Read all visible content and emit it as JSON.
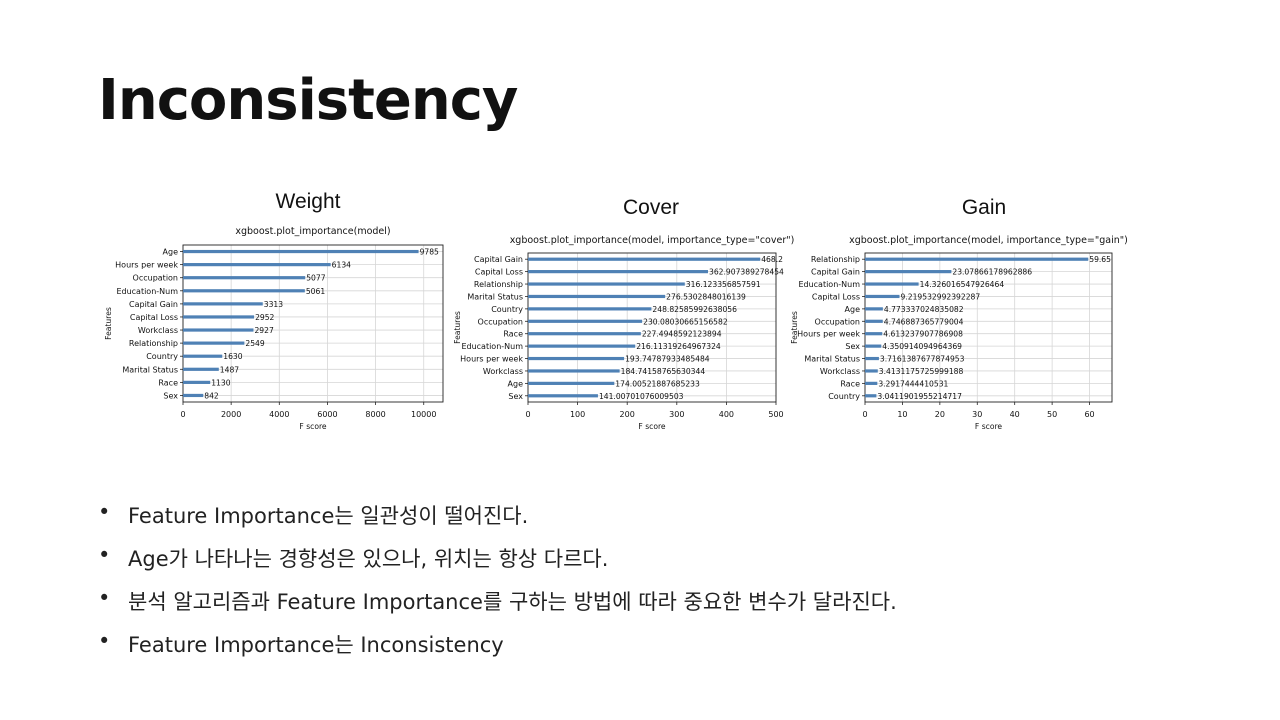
{
  "slide": {
    "title": "Inconsistency"
  },
  "panels": [
    {
      "heading": "Weight"
    },
    {
      "heading": "Cover"
    },
    {
      "heading": "Gain"
    }
  ],
  "chart_data": [
    {
      "type": "bar",
      "orientation": "horizontal",
      "title": "xgboost.plot_importance(model)",
      "xlabel": "F score",
      "ylabel": "Features",
      "xlim": [
        0,
        10800
      ],
      "xticks": [
        0,
        2000,
        4000,
        6000,
        8000,
        10000
      ],
      "grid": true,
      "bar_color": "#4f81b5",
      "categories": [
        "Age",
        "Hours per week",
        "Occupation",
        "Education-Num",
        "Capital Gain",
        "Capital Loss",
        "Workclass",
        "Relationship",
        "Country",
        "Marital Status",
        "Race",
        "Sex"
      ],
      "values": [
        9785,
        6134,
        5077,
        5061,
        3313,
        2952,
        2927,
        2549,
        1630,
        1487,
        1130,
        842
      ],
      "value_labels": [
        "9785",
        "6134",
        "5077",
        "5061",
        "3313",
        "2952",
        "2927",
        "2549",
        "1630",
        "1487",
        "1130",
        "842"
      ]
    },
    {
      "type": "bar",
      "orientation": "horizontal",
      "title": "xgboost.plot_importance(model, importance_type=\"cover\")",
      "xlabel": "F score",
      "ylabel": "Features",
      "xlim": [
        0,
        500
      ],
      "xticks": [
        0,
        100,
        200,
        300,
        400,
        500
      ],
      "grid": true,
      "bar_color": "#4f81b5",
      "categories": [
        "Capital Gain",
        "Capital Loss",
        "Relationship",
        "Marital Status",
        "Country",
        "Occupation",
        "Race",
        "Education-Num",
        "Hours per week",
        "Workclass",
        "Age",
        "Sex"
      ],
      "values": [
        468.2,
        362.907389278454,
        316.123356857591,
        276.5302848016139,
        248.82585992638056,
        230.08030665156582,
        227.4948592123894,
        216.11319264967324,
        193.74787933485484,
        184.74158765630344,
        174.00521887685233,
        141.00701076009503
      ],
      "value_labels": [
        "468.2",
        "362.907389278454",
        "316.123356857591",
        "276.5302848016139",
        "248.82585992638056",
        "230.08030665156582",
        "227.4948592123894",
        "216.11319264967324",
        "193.74787933485484",
        "184.74158765630344",
        "174.00521887685233",
        "141.00701076009503"
      ]
    },
    {
      "type": "bar",
      "orientation": "horizontal",
      "title": "xgboost.plot_importance(model, importance_type=\"gain\")",
      "xlabel": "F score",
      "ylabel": "Features",
      "xlim": [
        0,
        66
      ],
      "xticks": [
        0,
        10,
        20,
        30,
        40,
        50,
        60
      ],
      "grid": true,
      "bar_color": "#4f81b5",
      "categories": [
        "Relationship",
        "Capital Gain",
        "Education-Num",
        "Capital Loss",
        "Age",
        "Occupation",
        "Hours per week",
        "Sex",
        "Marital Status",
        "Workclass",
        "Race",
        "Country"
      ],
      "values": [
        59.65,
        23.07866178962886,
        14.326016547926464,
        9.219532992392287,
        4.773337024835082,
        4.746887365779004,
        4.613237907786908,
        4.350914094964369,
        3.7161387677874953,
        3.4131175725999188,
        3.2917444410531,
        3.0411901955214717
      ],
      "value_labels": [
        "59.65",
        "23.07866178962886",
        "14.326016547926464",
        "9.219532992392287",
        "4.773337024835082",
        "4.746887365779004",
        "4.613237907786908",
        "4.350914094964369",
        "3.7161387677874953",
        "3.4131175725999188",
        "3.2917444410531",
        "3.0411901955214717"
      ]
    }
  ],
  "bullets": [
    "Feature Importance는 일관성이 떨어진다.",
    "Age가 나타나는 경향성은 있으나, 위치는 항상 다르다.",
    "분석 알고리즘과 Feature Importance를 구하는 방법에 따라 중요한 변수가 달라진다.",
    "Feature Importance는 Inconsistency"
  ],
  "bullet_symbol": "•"
}
